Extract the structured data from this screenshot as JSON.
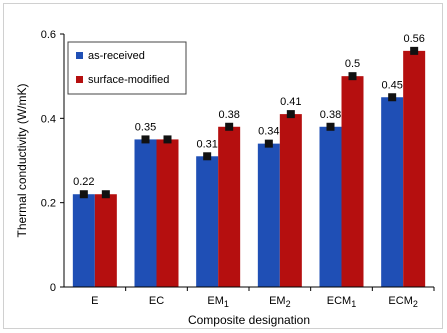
{
  "chart_data": {
    "type": "bar",
    "title": "",
    "xlabel": "Composite designation",
    "ylabel": "Thermal conductivity (W/mK)",
    "ylim": [
      0,
      0.6
    ],
    "yticks": [
      "0",
      "0.2",
      "0.4",
      "0.6"
    ],
    "y_tick_values": [
      0,
      0.2,
      0.4,
      0.6
    ],
    "grid": false,
    "legend_position": "top-left",
    "categories": [
      {
        "base": "E",
        "sub": ""
      },
      {
        "base": "EC",
        "sub": ""
      },
      {
        "base": "EM",
        "sub": "1"
      },
      {
        "base": "EM",
        "sub": "2"
      },
      {
        "base": "ECM",
        "sub": "1"
      },
      {
        "base": "ECM",
        "sub": "2"
      }
    ],
    "series": [
      {
        "name": "as-received",
        "color": "#1f4fb5",
        "values": [
          0.22,
          0.35,
          0.31,
          0.34,
          0.38,
          0.45
        ],
        "labels": [
          "0.22",
          "0.35",
          "0.31",
          "0.34",
          "0.38",
          "0.45"
        ]
      },
      {
        "name": "surface-modified",
        "color": "#b50f0f",
        "values": [
          0.22,
          0.35,
          0.38,
          0.41,
          0.5,
          0.56
        ],
        "labels": [
          "",
          "",
          "0.38",
          "0.41",
          "0.5",
          "0.56"
        ]
      }
    ]
  }
}
